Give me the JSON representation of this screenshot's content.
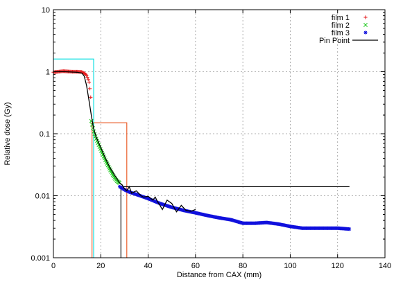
{
  "chart_data": {
    "type": "scatter",
    "xlabel": "Distance from CAX (mm)",
    "ylabel": "Relative dose (Gy)",
    "xlim": [
      0,
      140
    ],
    "ylim": [
      0.001,
      10
    ],
    "yscale": "log",
    "grid": true,
    "legend_position": "top-right",
    "x_ticks": [
      "0",
      "20",
      "40",
      "60",
      "80",
      "100",
      "120",
      "140"
    ],
    "y_ticks": [
      "0.001",
      "0.01",
      "0.1",
      "1",
      "10"
    ],
    "series": [
      {
        "name": "film 1",
        "marker": "plus",
        "color": "#e41a1c",
        "x": [
          0,
          2,
          4,
          6,
          8,
          10,
          12,
          13,
          14,
          15,
          15.5,
          16
        ],
        "y": [
          0.98,
          1.0,
          1.02,
          1.01,
          1.0,
          1.0,
          0.99,
          0.95,
          0.88,
          0.7,
          0.5,
          0.3
        ]
      },
      {
        "name": "film 2",
        "marker": "cross",
        "color": "#1ec81e",
        "x": [
          16,
          17,
          18,
          19,
          20,
          21,
          22,
          23,
          24,
          25,
          26,
          27,
          28
        ],
        "y": [
          0.16,
          0.11,
          0.085,
          0.068,
          0.055,
          0.045,
          0.037,
          0.031,
          0.026,
          0.022,
          0.019,
          0.017,
          0.016
        ]
      },
      {
        "name": "film 3",
        "marker": "star",
        "color": "#1010dd",
        "x": [
          28,
          30,
          32,
          35,
          40,
          45,
          50,
          55,
          60,
          65,
          70,
          75,
          80,
          85,
          90,
          95,
          100,
          105,
          110,
          115,
          120,
          125
        ],
        "y": [
          0.014,
          0.0125,
          0.0115,
          0.0105,
          0.009,
          0.0075,
          0.0065,
          0.0058,
          0.0053,
          0.0048,
          0.0044,
          0.0041,
          0.0036,
          0.0036,
          0.0037,
          0.0035,
          0.0032,
          0.003,
          0.003,
          0.003,
          0.003,
          0.0029
        ]
      },
      {
        "name": "Pin Point",
        "marker": "line",
        "color": "#000000",
        "x": [
          0,
          5,
          10,
          12,
          13,
          14,
          15,
          16,
          17,
          18,
          20,
          22,
          24,
          26,
          28,
          29,
          30,
          31,
          32,
          33,
          35,
          37,
          38,
          40,
          42,
          43,
          44,
          45,
          46,
          48,
          50,
          52,
          54,
          56,
          58,
          60
        ],
        "y": [
          1.0,
          1.0,
          0.98,
          0.95,
          0.85,
          0.6,
          0.35,
          0.2,
          0.12,
          0.09,
          0.06,
          0.04,
          0.028,
          0.021,
          0.016,
          0.015,
          0.013,
          0.012,
          0.014,
          0.011,
          0.012,
          0.01,
          0.0095,
          0.0098,
          0.0085,
          0.0095,
          0.008,
          0.007,
          0.006,
          0.0085,
          0.0075,
          0.0055,
          0.007,
          0.0058,
          0.0056,
          0.006
        ]
      }
    ],
    "annotations": [
      {
        "name": "cyan-box",
        "color": "#00dde0",
        "x": [
          0,
          17,
          17,
          16.2,
          16.2
        ],
        "y": [
          1.6,
          1.6,
          0.001,
          0.001,
          0.001
        ]
      },
      {
        "name": "orange-box",
        "color": "#e8501a",
        "x": [
          16.3,
          16.3,
          31,
          31
        ],
        "y": [
          0.001,
          0.15,
          0.15,
          0.001
        ]
      },
      {
        "name": "black-box",
        "color": "#000000",
        "x": [
          28.5,
          28.5,
          125
        ],
        "y": [
          0.001,
          0.014,
          0.014
        ]
      }
    ]
  }
}
